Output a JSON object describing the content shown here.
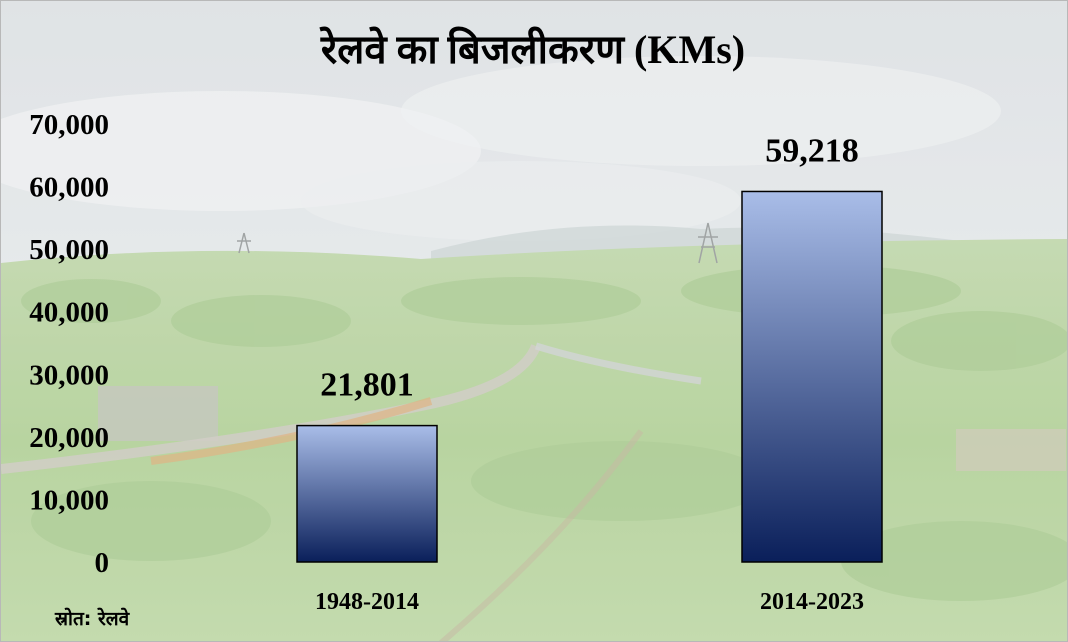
{
  "chart_data": {
    "type": "bar",
    "title": "रेलवे का बिजलीकरण (KMs)",
    "categories": [
      "1948-2014",
      "2014-2023"
    ],
    "values": [
      21801,
      59218
    ],
    "value_labels": [
      "21,801",
      "59,218"
    ],
    "ylim": [
      0,
      70000
    ],
    "yticks": [
      0,
      10000,
      20000,
      30000,
      40000,
      50000,
      60000,
      70000
    ],
    "ytick_labels": [
      "0",
      "10,000",
      "20,000",
      "30,000",
      "40,000",
      "50,000",
      "60,000",
      "70,000"
    ],
    "grid": false,
    "legend": "none",
    "bar_gradient": [
      "#a9bde8",
      "#0a1f5a"
    ]
  },
  "source": "स्रोत: रेलवे"
}
